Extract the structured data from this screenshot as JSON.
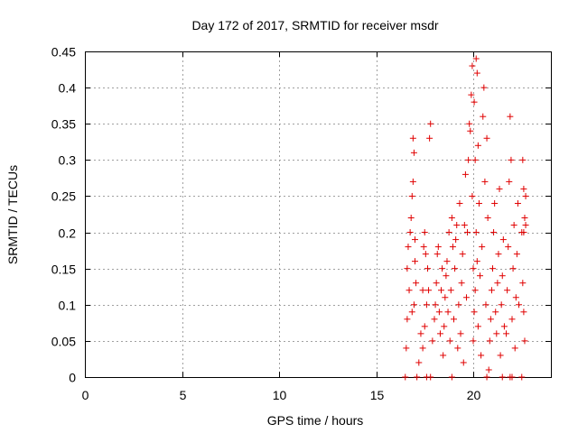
{
  "chart_data": {
    "type": "scatter",
    "title": "Day 172 of 2017, SRMTID for receiver msdr",
    "xlabel": "GPS time / hours",
    "ylabel": "SRMTID / TECUs",
    "xlim": [
      0,
      24
    ],
    "ylim": [
      0,
      0.45
    ],
    "xticks": [
      0,
      5,
      10,
      15,
      20
    ],
    "xtick_labels": [
      "0",
      "5",
      "10",
      "15",
      "20"
    ],
    "yticks": [
      0,
      0.05,
      0.1,
      0.15,
      0.2,
      0.25,
      0.3,
      0.35,
      0.4,
      0.45
    ],
    "ytick_labels": [
      "0",
      "0.05",
      "0.1",
      "0.15",
      "0.2",
      "0.25",
      "0.3",
      "0.35",
      "0.4",
      "0.45"
    ],
    "grid": true,
    "marker": "plus",
    "color": "#e00000",
    "series": [
      {
        "name": "SRMTID",
        "points": [
          [
            16.5,
            0.0
          ],
          [
            17.1,
            0.0
          ],
          [
            17.6,
            0.0
          ],
          [
            17.8,
            0.0
          ],
          [
            18.9,
            0.0
          ],
          [
            20.7,
            0.0
          ],
          [
            21.5,
            0.0
          ],
          [
            21.9,
            0.0
          ],
          [
            22.0,
            0.0
          ],
          [
            22.5,
            0.0
          ],
          [
            16.55,
            0.04
          ],
          [
            16.6,
            0.08
          ],
          [
            16.6,
            0.15
          ],
          [
            16.65,
            0.18
          ],
          [
            16.7,
            0.12
          ],
          [
            16.75,
            0.2
          ],
          [
            16.8,
            0.22
          ],
          [
            16.85,
            0.25
          ],
          [
            16.9,
            0.27
          ],
          [
            16.95,
            0.1
          ],
          [
            16.9,
            0.33
          ],
          [
            16.95,
            0.31
          ],
          [
            17.0,
            0.19
          ],
          [
            17.0,
            0.16
          ],
          [
            16.85,
            0.09
          ],
          [
            17.05,
            0.13
          ],
          [
            17.2,
            0.02
          ],
          [
            17.3,
            0.06
          ],
          [
            17.4,
            0.12
          ],
          [
            17.45,
            0.18
          ],
          [
            17.5,
            0.2
          ],
          [
            17.55,
            0.17
          ],
          [
            17.6,
            0.1
          ],
          [
            17.65,
            0.15
          ],
          [
            17.5,
            0.07
          ],
          [
            17.4,
            0.04
          ],
          [
            17.75,
            0.33
          ],
          [
            17.8,
            0.35
          ],
          [
            17.7,
            0.12
          ],
          [
            17.9,
            0.05
          ],
          [
            18.0,
            0.08
          ],
          [
            18.05,
            0.1
          ],
          [
            18.1,
            0.13
          ],
          [
            18.15,
            0.17
          ],
          [
            18.2,
            0.18
          ],
          [
            18.25,
            0.09
          ],
          [
            18.3,
            0.06
          ],
          [
            18.35,
            0.12
          ],
          [
            18.4,
            0.15
          ],
          [
            18.45,
            0.03
          ],
          [
            18.5,
            0.07
          ],
          [
            18.55,
            0.11
          ],
          [
            18.6,
            0.14
          ],
          [
            18.65,
            0.16
          ],
          [
            18.7,
            0.09
          ],
          [
            18.75,
            0.2
          ],
          [
            18.8,
            0.05
          ],
          [
            18.85,
            0.12
          ],
          [
            18.9,
            0.22
          ],
          [
            18.95,
            0.18
          ],
          [
            19.0,
            0.08
          ],
          [
            19.05,
            0.15
          ],
          [
            19.1,
            0.19
          ],
          [
            19.15,
            0.21
          ],
          [
            19.2,
            0.04
          ],
          [
            19.25,
            0.1
          ],
          [
            19.3,
            0.24
          ],
          [
            19.35,
            0.06
          ],
          [
            19.4,
            0.13
          ],
          [
            19.45,
            0.17
          ],
          [
            19.5,
            0.02
          ],
          [
            19.55,
            0.21
          ],
          [
            19.6,
            0.28
          ],
          [
            19.65,
            0.11
          ],
          [
            19.7,
            0.2
          ],
          [
            19.75,
            0.3
          ],
          [
            19.8,
            0.35
          ],
          [
            19.85,
            0.34
          ],
          [
            19.9,
            0.39
          ],
          [
            19.95,
            0.43
          ],
          [
            19.95,
            0.25
          ],
          [
            20.0,
            0.15
          ],
          [
            20.05,
            0.38
          ],
          [
            20.1,
            0.3
          ],
          [
            20.15,
            0.44
          ],
          [
            20.2,
            0.42
          ],
          [
            20.25,
            0.32
          ],
          [
            20.0,
            0.05
          ],
          [
            20.05,
            0.09
          ],
          [
            20.1,
            0.12
          ],
          [
            20.15,
            0.2
          ],
          [
            20.2,
            0.16
          ],
          [
            20.25,
            0.07
          ],
          [
            20.3,
            0.24
          ],
          [
            20.35,
            0.14
          ],
          [
            20.4,
            0.03
          ],
          [
            20.45,
            0.18
          ],
          [
            20.5,
            0.36
          ],
          [
            20.55,
            0.4
          ],
          [
            20.6,
            0.27
          ],
          [
            20.65,
            0.1
          ],
          [
            20.7,
            0.33
          ],
          [
            20.75,
            0.22
          ],
          [
            20.8,
            0.01
          ],
          [
            20.85,
            0.05
          ],
          [
            20.9,
            0.08
          ],
          [
            20.95,
            0.12
          ],
          [
            21.0,
            0.15
          ],
          [
            21.05,
            0.2
          ],
          [
            21.1,
            0.24
          ],
          [
            21.15,
            0.09
          ],
          [
            21.2,
            0.06
          ],
          [
            21.25,
            0.13
          ],
          [
            21.3,
            0.17
          ],
          [
            21.35,
            0.26
          ],
          [
            21.4,
            0.03
          ],
          [
            21.45,
            0.1
          ],
          [
            21.5,
            0.14
          ],
          [
            21.55,
            0.19
          ],
          [
            21.6,
            0.07
          ],
          [
            21.7,
            0.06
          ],
          [
            21.75,
            0.12
          ],
          [
            21.8,
            0.18
          ],
          [
            21.85,
            0.27
          ],
          [
            21.9,
            0.36
          ],
          [
            21.95,
            0.3
          ],
          [
            22.0,
            0.08
          ],
          [
            22.05,
            0.15
          ],
          [
            22.1,
            0.21
          ],
          [
            22.15,
            0.04
          ],
          [
            22.2,
            0.11
          ],
          [
            22.25,
            0.17
          ],
          [
            22.3,
            0.24
          ],
          [
            22.35,
            0.1
          ],
          [
            22.5,
            0.2
          ],
          [
            22.55,
            0.3
          ],
          [
            22.6,
            0.26
          ],
          [
            22.65,
            0.22
          ],
          [
            22.7,
            0.25
          ],
          [
            22.55,
            0.13
          ],
          [
            22.6,
            0.09
          ],
          [
            22.65,
            0.05
          ],
          [
            22.6,
            0.2
          ],
          [
            22.7,
            0.21
          ]
        ]
      }
    ]
  }
}
